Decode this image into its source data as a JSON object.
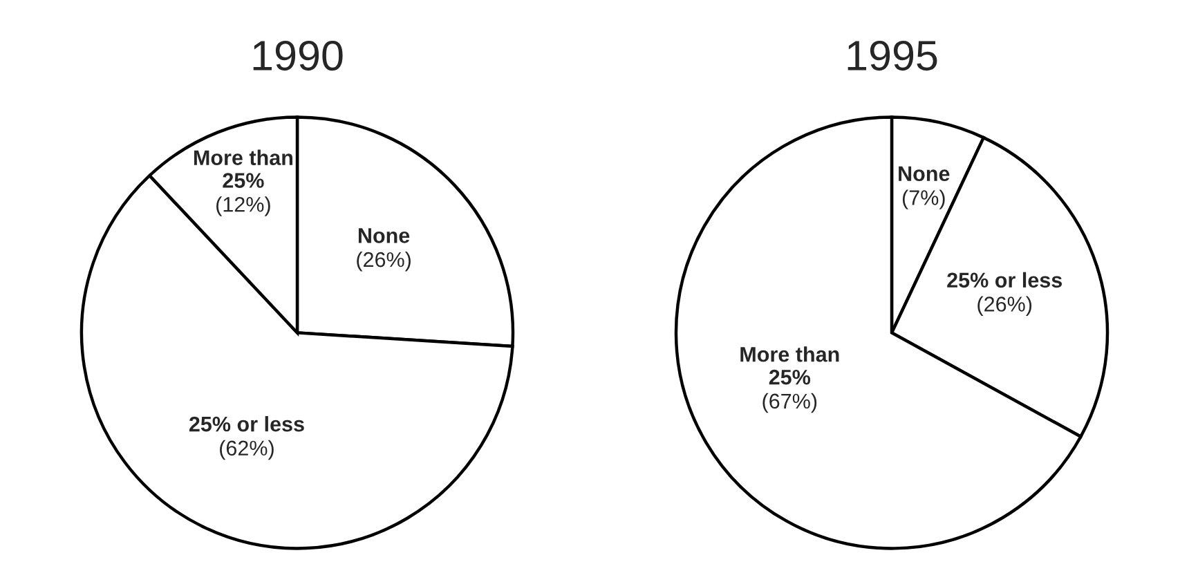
{
  "chart_data": [
    {
      "type": "pie",
      "title": "1990",
      "categories": [
        "None",
        "25% or less",
        "More than\n25%"
      ],
      "values": [
        26,
        62,
        12
      ],
      "value_labels": [
        "(26%)",
        "(62%)",
        "(12%)"
      ],
      "colors": [
        "#ffffff",
        "#ffffff",
        "#ffffff"
      ]
    },
    {
      "type": "pie",
      "title": "1995",
      "categories": [
        "None",
        "25% or less",
        "More than\n25%"
      ],
      "values": [
        7,
        26,
        67
      ],
      "value_labels": [
        "(7%)",
        "(26%)",
        "(67%)"
      ],
      "colors": [
        "#ffffff",
        "#ffffff",
        "#ffffff"
      ]
    }
  ]
}
